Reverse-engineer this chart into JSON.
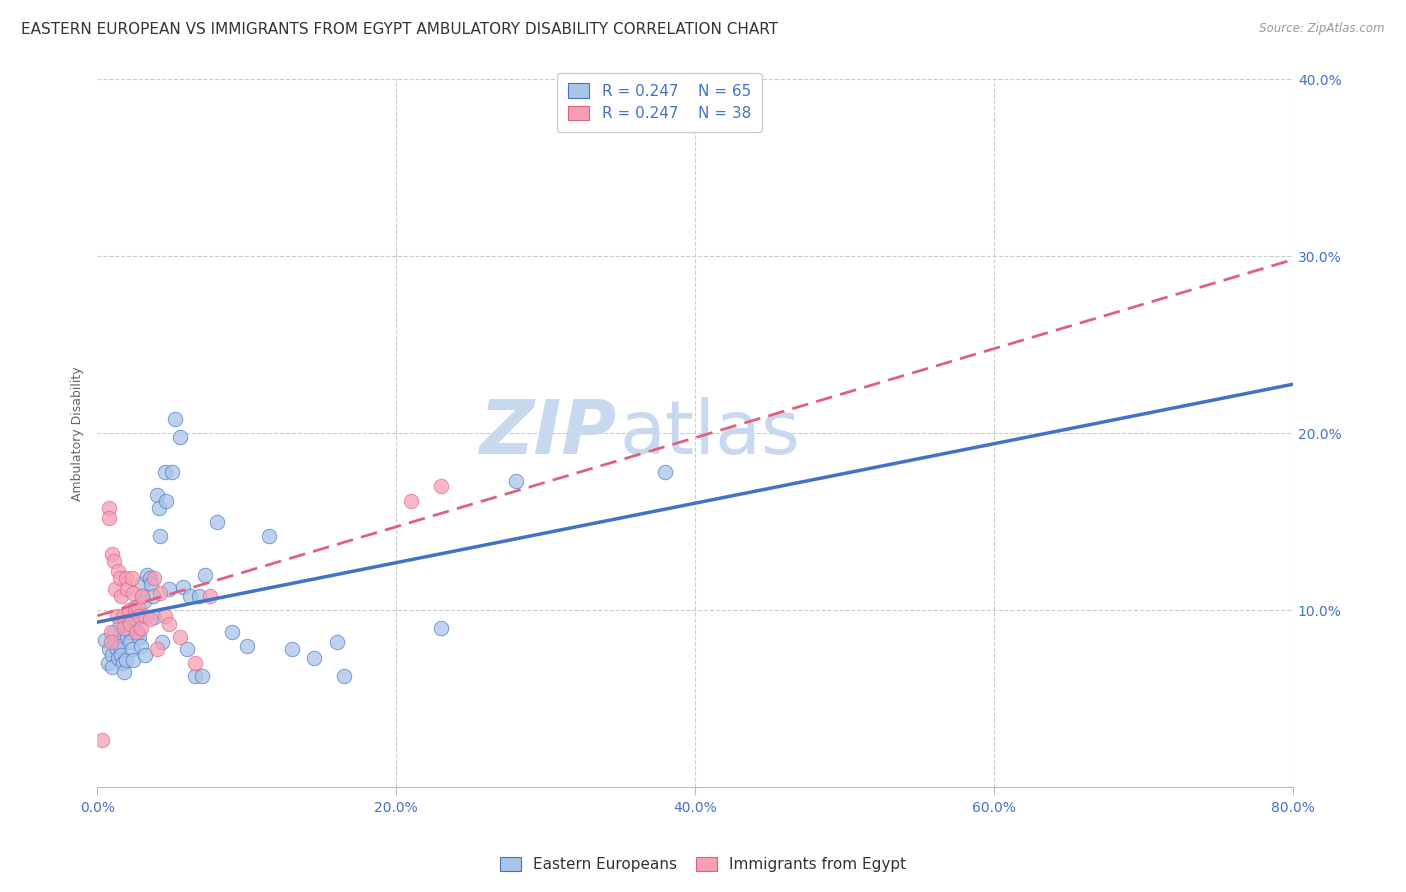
{
  "title": "EASTERN EUROPEAN VS IMMIGRANTS FROM EGYPT AMBULATORY DISABILITY CORRELATION CHART",
  "source": "Source: ZipAtlas.com",
  "ylabel": "Ambulatory Disability",
  "xlim": [
    0.0,
    0.8
  ],
  "ylim": [
    0.0,
    0.4
  ],
  "xticks": [
    0.0,
    0.2,
    0.4,
    0.6,
    0.8
  ],
  "yticks": [
    0.0,
    0.1,
    0.2,
    0.3,
    0.4
  ],
  "xtick_labels": [
    "0.0%",
    "20.0%",
    "40.0%",
    "60.0%",
    "80.0%"
  ],
  "ytick_labels": [
    "",
    "10.0%",
    "20.0%",
    "30.0%",
    "40.0%"
  ],
  "legend1_R": "0.247",
  "legend1_N": "65",
  "legend2_R": "0.247",
  "legend2_N": "38",
  "color_blue": "#a8c4e8",
  "color_pink": "#f4a0b5",
  "trendline_blue_color": "#4472c4",
  "trendline_pink_color": "#e06080",
  "background_color": "#ffffff",
  "watermark_zip_color": "#c8d8ee",
  "watermark_atlas_color": "#c8d8ee",
  "title_fontsize": 11,
  "axis_label_fontsize": 9,
  "tick_label_fontsize": 10,
  "tick_label_color": "#4472c4",
  "source_color": "#999999",
  "blue_scatter_x": [
    0.005,
    0.007,
    0.008,
    0.01,
    0.01,
    0.011,
    0.012,
    0.013,
    0.014,
    0.015,
    0.015,
    0.015,
    0.016,
    0.017,
    0.018,
    0.019,
    0.02,
    0.02,
    0.021,
    0.022,
    0.022,
    0.023,
    0.024,
    0.025,
    0.026,
    0.027,
    0.028,
    0.029,
    0.03,
    0.03,
    0.031,
    0.032,
    0.033,
    0.035,
    0.036,
    0.037,
    0.038,
    0.04,
    0.041,
    0.042,
    0.043,
    0.045,
    0.046,
    0.048,
    0.05,
    0.052,
    0.055,
    0.057,
    0.06,
    0.062,
    0.065,
    0.068,
    0.07,
    0.072,
    0.08,
    0.09,
    0.1,
    0.115,
    0.13,
    0.145,
    0.16,
    0.165,
    0.23,
    0.28,
    0.38
  ],
  "blue_scatter_y": [
    0.083,
    0.07,
    0.078,
    0.075,
    0.068,
    0.088,
    0.082,
    0.078,
    0.073,
    0.092,
    0.086,
    0.08,
    0.075,
    0.07,
    0.065,
    0.072,
    0.09,
    0.085,
    0.095,
    0.088,
    0.082,
    0.078,
    0.072,
    0.102,
    0.095,
    0.088,
    0.085,
    0.08,
    0.115,
    0.108,
    0.105,
    0.075,
    0.12,
    0.118,
    0.115,
    0.108,
    0.096,
    0.165,
    0.158,
    0.142,
    0.082,
    0.178,
    0.162,
    0.112,
    0.178,
    0.208,
    0.198,
    0.113,
    0.078,
    0.108,
    0.063,
    0.108,
    0.063,
    0.12,
    0.15,
    0.088,
    0.08,
    0.142,
    0.078,
    0.073,
    0.082,
    0.063,
    0.09,
    0.173,
    0.178
  ],
  "pink_scatter_x": [
    0.003,
    0.008,
    0.008,
    0.009,
    0.009,
    0.01,
    0.011,
    0.012,
    0.013,
    0.014,
    0.015,
    0.016,
    0.017,
    0.018,
    0.019,
    0.02,
    0.021,
    0.022,
    0.023,
    0.024,
    0.025,
    0.026,
    0.027,
    0.028,
    0.029,
    0.03,
    0.032,
    0.035,
    0.038,
    0.04,
    0.042,
    0.045,
    0.048,
    0.055,
    0.065,
    0.075,
    0.21,
    0.23
  ],
  "pink_scatter_y": [
    0.027,
    0.158,
    0.152,
    0.088,
    0.082,
    0.132,
    0.128,
    0.112,
    0.097,
    0.122,
    0.118,
    0.108,
    0.097,
    0.09,
    0.118,
    0.112,
    0.1,
    0.092,
    0.118,
    0.11,
    0.1,
    0.088,
    0.102,
    0.097,
    0.09,
    0.108,
    0.097,
    0.095,
    0.118,
    0.078,
    0.11,
    0.097,
    0.092,
    0.085,
    0.07,
    0.108,
    0.162,
    0.17
  ]
}
